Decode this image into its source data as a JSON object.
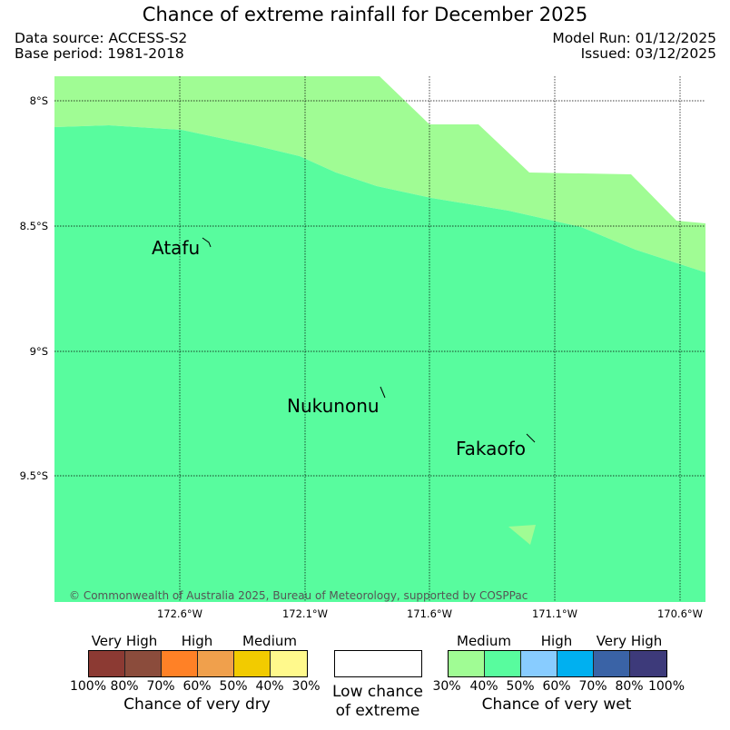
{
  "header": {
    "title": "Chance of extreme rainfall for December 2025",
    "data_source": "Data source: ACCESS-S2",
    "base_period": "Base period: 1981-2018",
    "model_run": "Model Run: 01/12/2025",
    "issued": "Issued: 03/12/2025"
  },
  "map": {
    "lat_labels": [
      "8°S",
      "8.5°S",
      "9°S",
      "9.5°S"
    ],
    "lon_labels": [
      "172.6°W",
      "172.1°W",
      "171.6°W",
      "171.1°W",
      "170.6°W"
    ],
    "places": [
      "Atafu",
      "Nukunonu",
      "Fakaofo"
    ],
    "copyright": "© Commonwealth of Australia 2025, Bureau of Meteorology, supported by COSPPac",
    "colors": {
      "medium_wet_30_40": "#a0fc94",
      "high_wet_40_50": "#58fc9e"
    }
  },
  "legend": {
    "dry": {
      "categories": [
        "Very High",
        "High",
        "Medium"
      ],
      "colors": [
        "#8c3a33",
        "#8b4c3c",
        "#ff8126",
        "#f0a04c",
        "#f2cb00",
        "#fff98c"
      ],
      "ticks": [
        "100%",
        "80%",
        "70%",
        "60%",
        "50%",
        "40%",
        "30%"
      ],
      "caption": "Chance of very dry"
    },
    "low": {
      "caption_1": "Low chance",
      "caption_2": "of extreme",
      "color": "#ffffff"
    },
    "wet": {
      "categories": [
        "Medium",
        "High",
        "Very High"
      ],
      "colors": [
        "#a0fc94",
        "#58fc9e",
        "#88ccff",
        "#00b0f0",
        "#3a63a6",
        "#3d3a7a"
      ],
      "ticks": [
        "30%",
        "40%",
        "50%",
        "60%",
        "70%",
        "80%",
        "100%"
      ],
      "caption": "Chance of very wet"
    }
  }
}
